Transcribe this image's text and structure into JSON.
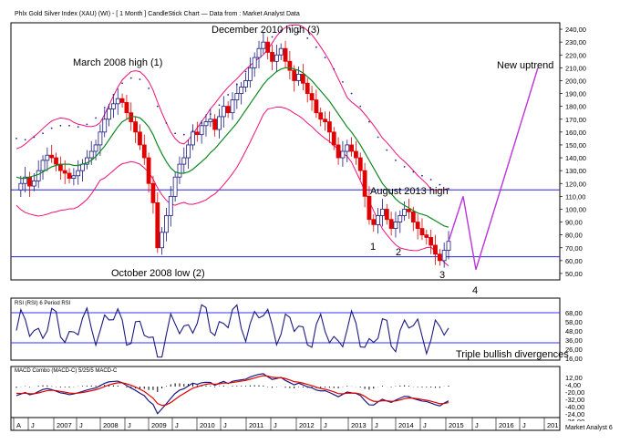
{
  "chart_data": {
    "type": "candlestick",
    "title": "Phlx Gold Silver Index (XAU) (WI) - [ 1 Month ] CandleStick Chart — Data from : Market Analyst Data",
    "ylim": [
      45,
      245
    ],
    "price_ticks": [
      "240,00",
      "230,00",
      "220,00",
      "210,00",
      "200,00",
      "190,00",
      "180,00",
      "170,00",
      "160,00",
      "150,00",
      "140,00",
      "130,00",
      "120,00",
      "110,00",
      "100,00",
      "90,00",
      "80,00",
      "70,00",
      "60,00",
      "50,00"
    ],
    "x_labels": [
      "A",
      "J",
      "2007",
      "J",
      "2008",
      "J",
      "2009",
      "J",
      "2010",
      "J",
      "2011",
      "J",
      "2012",
      "J",
      "2013",
      "J",
      "2014",
      "J",
      "2015",
      "J",
      "2016",
      "J",
      "201"
    ],
    "horizontal_lines": [
      115,
      63
    ],
    "annotations": {
      "march_2008": "March 2008 high (1)",
      "december_2010": "December 2010 high (3)",
      "october_2008": "October 2008 low (2)",
      "august_2013": "August 2013 high",
      "new_uptrend": "New uptrend",
      "w1": "1",
      "w2": "2",
      "w3": "3",
      "w4": "4"
    },
    "rsi": {
      "label": "RSI (RSI) 6 Period RSI",
      "ticks": [
        "68,00",
        "58,00",
        "48,00",
        "36,00",
        "26,00",
        "16,00"
      ],
      "annotation": "Triple bullish divergences"
    },
    "macd": {
      "label": "MACD Combo (MACD-C) 5/25/5 MACD-C",
      "ticks": [
        "12,00",
        "-4,00",
        "-20,00",
        "-32,00",
        "-40,00",
        "-24,00",
        "-36,00"
      ]
    },
    "footer": "Market Analyst 6",
    "series": [
      {
        "values": [
          115,
          120,
          125,
          118,
          122,
          130,
          138,
          142,
          140,
          135,
          130,
          128,
          124,
          126,
          130,
          135,
          140,
          145,
          150,
          160,
          170,
          178,
          182,
          186,
          183,
          175,
          168,
          160,
          150,
          140,
          120,
          105,
          70,
          82,
          95,
          110,
          125,
          135,
          140,
          150,
          160,
          158,
          165,
          168,
          170,
          162,
          172,
          180,
          175,
          185,
          190,
          195,
          200,
          210,
          218,
          225,
          230,
          222,
          215,
          220,
          225,
          215,
          208,
          200,
          205,
          198,
          190,
          185,
          175,
          170,
          168,
          160,
          150,
          140,
          145,
          150,
          145,
          140,
          130,
          110,
          92,
          88,
          95,
          100,
          92,
          85,
          90,
          95,
          100,
          98,
          90,
          85,
          80,
          78,
          72,
          65,
          60,
          68,
          75
        ]
      },
      {
        "values": [
          125,
          124,
          124,
          125,
          126,
          127,
          129,
          131,
          133,
          134,
          135,
          135,
          135,
          134,
          134,
          135,
          136,
          138,
          141,
          145,
          149,
          154,
          159,
          164,
          168,
          170,
          172,
          172,
          171,
          168,
          164,
          158,
          150,
          143,
          137,
          132,
          129,
          128,
          128,
          129,
          131,
          134,
          137,
          140,
          144,
          147,
          151,
          155,
          159,
          163,
          167,
          172,
          177,
          182,
          187,
          192,
          197,
          201,
          204,
          207,
          209,
          210,
          210,
          209,
          208,
          206,
          203,
          200,
          196,
          192,
          188,
          184,
          179,
          174,
          169,
          164,
          160,
          155,
          150,
          144,
          138,
          132,
          126,
          120,
          116,
          112,
          108,
          105,
          103,
          101,
          99,
          97,
          96,
          95,
          93,
          91,
          89,
          87,
          86
        ]
      }
    ]
  }
}
